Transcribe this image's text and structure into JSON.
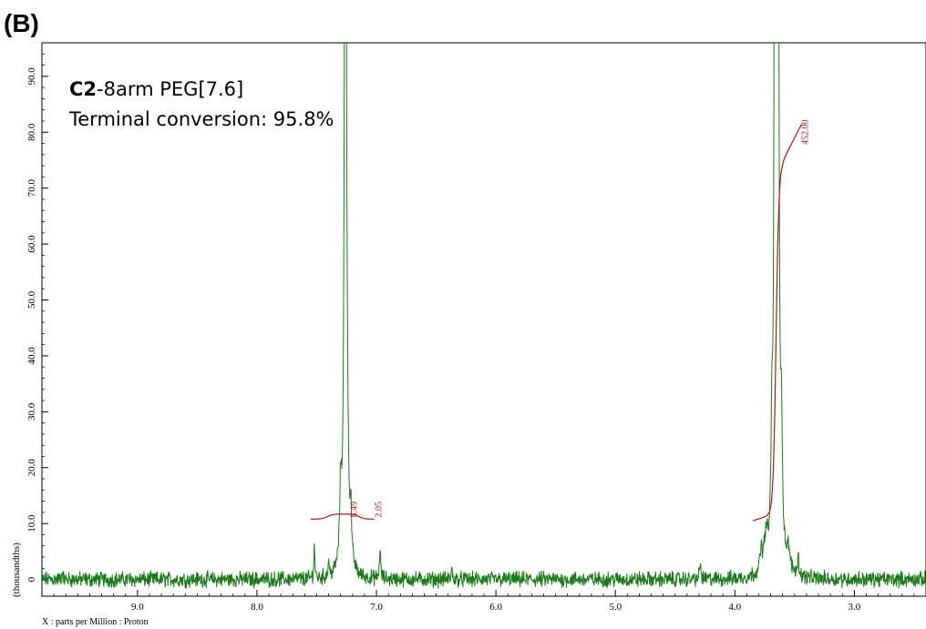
{
  "panel_label": "(B)",
  "annotation": {
    "sample_bold": "C2",
    "sample_rest": "-8arm PEG[7.6]",
    "conversion": "Terminal conversion: 95.8%"
  },
  "colors": {
    "spectrum": "#1a7a1a",
    "integral": "#b01818",
    "axes": "#000000"
  },
  "chart_data": {
    "type": "line",
    "title": "",
    "xlabel": "X : parts per Million : Proton",
    "ylabel": "(thousandths)",
    "x_reversed": true,
    "xlim": [
      9.8,
      2.4
    ],
    "ylim": [
      -3,
      96
    ],
    "x_ticks": [
      {
        "value": 9.0,
        "label": "9.0"
      },
      {
        "value": 8.0,
        "label": "8.0"
      },
      {
        "value": 7.0,
        "label": "7.0"
      },
      {
        "value": 6.0,
        "label": "6.0"
      },
      {
        "value": 5.0,
        "label": "5.0"
      },
      {
        "value": 4.0,
        "label": "4.0"
      },
      {
        "value": 3.0,
        "label": "3.0"
      }
    ],
    "y_ticks": [
      {
        "value": 0,
        "label": "0"
      },
      {
        "value": 10,
        "label": "10.0"
      },
      {
        "value": 20,
        "label": "20.0"
      },
      {
        "value": 30,
        "label": "30.0"
      },
      {
        "value": 40,
        "label": "40.0"
      },
      {
        "value": 50,
        "label": "50.0"
      },
      {
        "value": 60,
        "label": "60.0"
      },
      {
        "value": 70,
        "label": "70.0"
      },
      {
        "value": 80,
        "label": "80.0"
      },
      {
        "value": 90,
        "label": "90.0"
      }
    ],
    "peaks": [
      {
        "ppm": 7.26,
        "height": 200,
        "width": 0.008
      },
      {
        "ppm": 7.245,
        "height": 12,
        "width": 0.01
      },
      {
        "ppm": 7.215,
        "height": 8,
        "width": 0.006
      },
      {
        "ppm": 7.3,
        "height": 12,
        "width": 0.008
      },
      {
        "ppm": 7.52,
        "height": 6,
        "width": 0.005
      },
      {
        "ppm": 7.4,
        "height": 3,
        "width": 0.005
      },
      {
        "ppm": 6.97,
        "height": 6,
        "width": 0.005
      },
      {
        "ppm": 3.64,
        "height": 200,
        "width": 0.008
      },
      {
        "ppm": 3.665,
        "height": 200,
        "width": 0.006
      },
      {
        "ppm": 3.69,
        "height": 20,
        "width": 0.008
      },
      {
        "ppm": 3.61,
        "height": 20,
        "width": 0.008
      },
      {
        "ppm": 3.74,
        "height": 5,
        "width": 0.02
      },
      {
        "ppm": 3.78,
        "height": 3,
        "width": 0.01
      },
      {
        "ppm": 3.55,
        "height": 3,
        "width": 0.01
      },
      {
        "ppm": 3.47,
        "height": 3,
        "width": 0.008
      },
      {
        "ppm": 4.29,
        "height": 3,
        "width": 0.006
      },
      {
        "ppm": 6.37,
        "height": 2,
        "width": 0.005
      },
      {
        "ppm": 9.63,
        "height": 1.5,
        "width": 0.005
      }
    ],
    "integrals": [
      {
        "label": "8.49",
        "x_from": 7.55,
        "x_to": 7.27,
        "y_start": 10.8,
        "y_end": 11.7
      },
      {
        "label": "2.05",
        "x_from": 7.27,
        "x_to": 7.02,
        "y_start": 11.7,
        "y_end": 10.8
      },
      {
        "label": "452.00",
        "x_from": 3.85,
        "x_to": 3.44,
        "y_start": 10.5,
        "y_end": 81.5
      }
    ]
  }
}
